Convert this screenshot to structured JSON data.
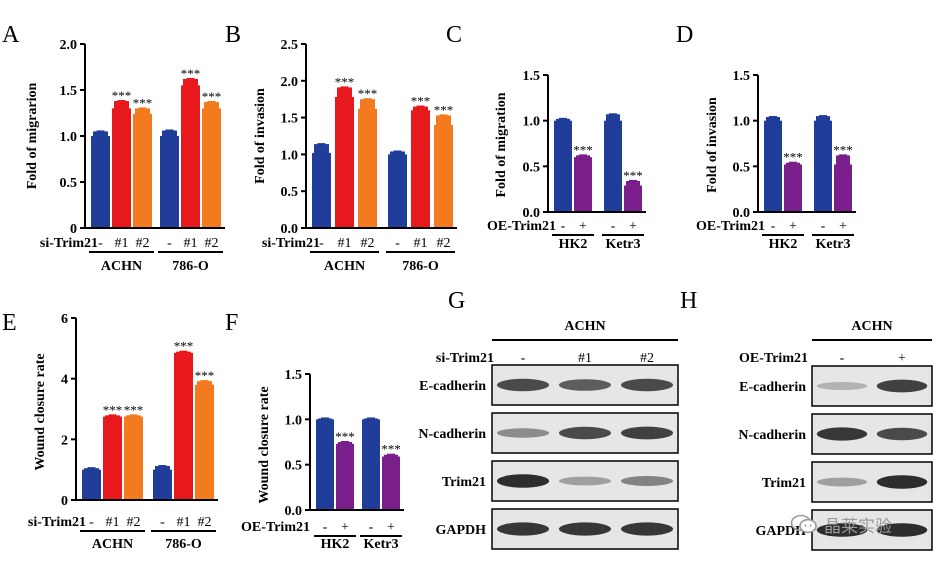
{
  "panels": [
    {
      "letter": "A",
      "chart_data": {
        "type": "bar",
        "ylabel": "Fold of migrarion",
        "ylim": [
          0,
          2.0
        ],
        "yticks": [
          "0",
          "0.5",
          "1.0",
          "1.5",
          "2.0"
        ],
        "factor": "si-Trim21",
        "treatments": [
          "-",
          "#1",
          "#2",
          "-",
          "#1",
          "#2"
        ],
        "groups": [
          "ACHN",
          "786-O"
        ],
        "values": [
          1.0,
          1.3,
          1.24,
          1.0,
          1.55,
          1.3
        ],
        "errors": [
          0.05,
          0.08,
          0.06,
          0.06,
          0.07,
          0.07
        ],
        "colors": [
          "#1f3d99",
          "#e8191c",
          "#f47a20",
          "#1f3d99",
          "#e8191c",
          "#f47a20"
        ],
        "annotations": [
          "",
          "***",
          "***",
          "",
          "***",
          "***"
        ]
      }
    },
    {
      "letter": "B",
      "chart_data": {
        "type": "bar",
        "ylabel": "Fold of invasion",
        "ylim": [
          0,
          2.5
        ],
        "yticks": [
          "0.0",
          "0.5",
          "1.0",
          "1.5",
          "2.0",
          "2.5"
        ],
        "factor": "si-Trim21",
        "treatments": [
          "-",
          "#1",
          "#2",
          "-",
          "#1",
          "#2"
        ],
        "groups": [
          "ACHN",
          "786-O"
        ],
        "values": [
          1.02,
          1.78,
          1.62,
          1.0,
          1.6,
          1.4
        ],
        "errors": [
          0.12,
          0.13,
          0.13,
          0.04,
          0.05,
          0.13
        ],
        "colors": [
          "#1f3d99",
          "#e8191c",
          "#f47a20",
          "#1f3d99",
          "#e8191c",
          "#f47a20"
        ],
        "annotations": [
          "",
          "***",
          "***",
          "",
          "***",
          "***"
        ]
      }
    },
    {
      "letter": "C",
      "chart_data": {
        "type": "bar",
        "ylabel": "Fold of migration",
        "ylim": [
          0,
          1.5
        ],
        "yticks": [
          "0.0",
          "0.5",
          "1.0",
          "1.5"
        ],
        "factor": "OE-Trim21",
        "treatments": [
          "-",
          "+",
          "-",
          "+"
        ],
        "groups": [
          "HK2",
          "Ketr3"
        ],
        "values": [
          1.0,
          0.6,
          1.0,
          0.29
        ],
        "errors": [
          0.02,
          0.02,
          0.07,
          0.05
        ],
        "colors": [
          "#1f3d99",
          "#7a1e8c",
          "#1f3d99",
          "#7a1e8c"
        ],
        "annotations": [
          "",
          "***",
          "",
          "***"
        ]
      }
    },
    {
      "letter": "D",
      "chart_data": {
        "type": "bar",
        "ylabel": "Fold of invasion",
        "ylim": [
          0,
          1.5
        ],
        "yticks": [
          "0.0",
          "0.5",
          "1.0",
          "1.5"
        ],
        "factor": "OE-Trim21",
        "treatments": [
          "-",
          "+",
          "-",
          "+"
        ],
        "groups": [
          "HK2",
          "Ketr3"
        ],
        "values": [
          1.0,
          0.52,
          1.0,
          0.52
        ],
        "errors": [
          0.04,
          0.02,
          0.05,
          0.1
        ],
        "colors": [
          "#1f3d99",
          "#7a1e8c",
          "#1f3d99",
          "#7a1e8c"
        ],
        "annotations": [
          "",
          "***",
          "",
          "***"
        ]
      }
    },
    {
      "letter": "E",
      "chart_data": {
        "type": "bar",
        "ylabel": "Wound closure rate",
        "ylim": [
          0,
          6
        ],
        "yticks": [
          "0",
          "2",
          "4",
          "6"
        ],
        "factor": "si-Trim21",
        "treatments": [
          "-",
          "#1",
          "#2",
          "-",
          "#1",
          "#2"
        ],
        "groups": [
          "ACHN",
          "786-O"
        ],
        "values": [
          1.0,
          2.75,
          2.75,
          1.0,
          4.85,
          3.8
        ],
        "errors": [
          0.05,
          0.04,
          0.04,
          0.12,
          0.04,
          0.12
        ],
        "colors": [
          "#1f3d99",
          "#e8191c",
          "#f47a20",
          "#1f3d99",
          "#e8191c",
          "#f47a20"
        ],
        "annotations": [
          "",
          "***",
          "***",
          "",
          "***",
          "***"
        ]
      }
    },
    {
      "letter": "F",
      "chart_data": {
        "type": "bar",
        "ylabel": "Wound closure rate",
        "ylim": [
          0,
          1.5
        ],
        "yticks": [
          "0.0",
          "0.5",
          "1.0",
          "1.5"
        ],
        "factor": "OE-Trim21",
        "treatments": [
          "-",
          "+",
          "-",
          "+"
        ],
        "groups": [
          "HK2",
          "Ketr3"
        ],
        "values": [
          1.0,
          0.73,
          1.0,
          0.59
        ],
        "errors": [
          0.01,
          0.02,
          0.01,
          0.02
        ],
        "colors": [
          "#1f3d99",
          "#7a1e8c",
          "#1f3d99",
          "#7a1e8c"
        ],
        "annotations": [
          "",
          "***",
          "",
          "***"
        ]
      }
    }
  ],
  "blots": [
    {
      "letter": "G",
      "cell_line": "ACHN",
      "factor": "si-Trim21",
      "lanes": [
        "-",
        "#1",
        "#2"
      ],
      "proteins": [
        "E-cadherin",
        "N-cadherin",
        "Trim21",
        "GAPDH"
      ],
      "intensity": [
        [
          0.8,
          0.7,
          0.8
        ],
        [
          0.45,
          0.8,
          0.85
        ],
        [
          0.95,
          0.35,
          0.5
        ],
        [
          0.9,
          0.9,
          0.9
        ]
      ]
    },
    {
      "letter": "H",
      "cell_line": "ACHN",
      "factor": "OE-Trim21",
      "lanes": [
        "-",
        "+"
      ],
      "proteins": [
        "E-cadherin",
        "N-cadherin",
        "Trim21",
        "GAPDH"
      ],
      "intensity": [
        [
          0.25,
          0.85
        ],
        [
          0.9,
          0.8
        ],
        [
          0.35,
          0.95
        ],
        [
          0.95,
          0.95
        ]
      ]
    }
  ],
  "watermark": {
    "text": "晶莱实验"
  }
}
